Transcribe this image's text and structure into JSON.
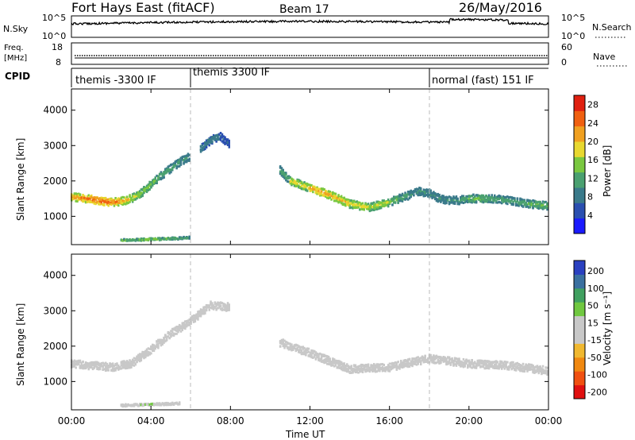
{
  "header": {
    "station": "Fort Hays East (fitACF)",
    "beam": "Beam 17",
    "date": "26/May/2016"
  },
  "noise_panel": {
    "left_label": "N.Sky",
    "right_label": "N.Search",
    "left_ticks": [
      "10^5",
      "10^0"
    ],
    "right_ticks": [
      "10^5",
      "10^0"
    ]
  },
  "freq_panel": {
    "left_label_line1": "Freq.",
    "left_label_line2": "[MHz]",
    "right_label": "Nave",
    "left_ticks": [
      "18",
      "8"
    ],
    "right_ticks": [
      "60",
      "0"
    ]
  },
  "cpid": {
    "label": "CPID",
    "segments": [
      {
        "name": "themis -3300 IF",
        "start_hour": 0
      },
      {
        "name": "themis 3300 IF",
        "start_hour": 6
      },
      {
        "name": "normal (fast) 151 IF",
        "start_hour": 18
      }
    ]
  },
  "colors": {
    "power_scale": [
      "#1a1aff",
      "#2a4fb0",
      "#3a7a8a",
      "#4aa070",
      "#7ac840",
      "#e8d830",
      "#f0a020",
      "#f06010",
      "#e02010"
    ],
    "velocity_scale": [
      "#e01010",
      "#f05010",
      "#f08810",
      "#f0b830",
      "#c8c8c8",
      "#c8c8c8",
      "#70c840",
      "#40a060",
      "#3a70a0",
      "#2a40c0"
    ]
  },
  "chart_data": [
    {
      "type": "heatmap",
      "title": "",
      "quantity": "Power",
      "xlabel": "",
      "ylabel": "Slant Range [km]",
      "xlim": [
        0,
        24
      ],
      "ylim": [
        200,
        4600
      ],
      "yticks": [
        1000,
        2000,
        3000,
        4000
      ],
      "colorbar": {
        "label": "Power [dB]",
        "ticks": [
          "4",
          "8",
          "12",
          "16",
          "20",
          "24",
          "28"
        ],
        "range": [
          0,
          30
        ]
      },
      "features": [
        {
          "feature": "ionospheric scatter",
          "hours": [
            0.0,
            0.5,
            1.0,
            1.5,
            2.0,
            2.5,
            3.0,
            3.5,
            4.0,
            4.5,
            5.0,
            5.5,
            6.0
          ],
          "range_km": [
            1550,
            1520,
            1480,
            1430,
            1400,
            1420,
            1500,
            1650,
            1900,
            2150,
            2350,
            2550,
            2700
          ],
          "peak_power_db": [
            24,
            26,
            28,
            28,
            26,
            22,
            18,
            16,
            14,
            12,
            12,
            10,
            10
          ]
        },
        {
          "feature": "ionospheric scatter",
          "hours": [
            6.5,
            7.0,
            7.5,
            8.0
          ],
          "range_km": [
            2900,
            3150,
            3250,
            3000
          ],
          "peak_power_db": [
            8,
            8,
            6,
            6
          ]
        },
        {
          "feature": "ionospheric scatter",
          "hours": [
            10.5,
            11.0,
            12.0,
            13.0,
            14.0,
            15.0,
            16.0,
            16.5,
            17.0,
            17.5,
            18.0,
            18.5,
            19.0,
            19.5,
            20.0,
            21.0,
            22.0,
            23.0,
            24.0
          ],
          "range_km": [
            2300,
            2000,
            1800,
            1600,
            1350,
            1250,
            1400,
            1500,
            1600,
            1700,
            1650,
            1500,
            1450,
            1450,
            1500,
            1500,
            1450,
            1350,
            1300
          ],
          "peak_power_db": [
            12,
            20,
            24,
            22,
            20,
            18,
            14,
            12,
            10,
            10,
            10,
            10,
            10,
            12,
            14,
            12,
            12,
            14,
            12
          ]
        },
        {
          "feature": "near-range scatter",
          "hours": [
            2.5,
            3.5,
            4.5,
            5.5,
            6.0
          ],
          "range_km": [
            320,
            340,
            360,
            380,
            400
          ],
          "peak_power_db": [
            14,
            16,
            14,
            12,
            10
          ]
        }
      ]
    },
    {
      "type": "heatmap",
      "title": "",
      "quantity": "Velocity",
      "xlabel": "Time UT",
      "ylabel": "Slant Range [km]",
      "xlim": [
        0,
        24
      ],
      "ylim": [
        200,
        4600
      ],
      "xticks": [
        "00:00",
        "04:00",
        "08:00",
        "12:00",
        "16:00",
        "20:00",
        "00:00"
      ],
      "yticks": [
        1000,
        2000,
        3000,
        4000
      ],
      "colorbar": {
        "label": "Velocity [m s^-1]",
        "ticks": [
          "200",
          "100",
          "50",
          "15",
          "-15",
          "-50",
          "-100",
          "-200"
        ],
        "range": [
          -250,
          250
        ]
      },
      "features": [
        {
          "feature": "ground scatter (low velocity)",
          "hours": [
            0.0,
            1.0,
            2.0,
            3.0,
            4.0,
            5.0,
            6.0,
            7.0,
            8.0
          ],
          "range_km": [
            1500,
            1450,
            1400,
            1500,
            1900,
            2350,
            2700,
            3150,
            3100
          ],
          "velocity_ms": [
            0,
            0,
            0,
            0,
            0,
            0,
            0,
            0,
            0
          ]
        },
        {
          "feature": "ground scatter (low velocity)",
          "hours": [
            10.5,
            12.0,
            14.0,
            16.0,
            18.0,
            20.0,
            22.0,
            24.0
          ],
          "range_km": [
            2100,
            1800,
            1350,
            1400,
            1650,
            1500,
            1450,
            1300
          ],
          "velocity_ms": [
            0,
            0,
            0,
            0,
            0,
            0,
            0,
            0
          ]
        },
        {
          "feature": "near-range positive velocity",
          "hours": [
            2.5,
            3.5,
            4.5,
            5.5
          ],
          "range_km": [
            320,
            340,
            360,
            380
          ],
          "velocity_ms": [
            40,
            50,
            45,
            40
          ]
        }
      ]
    }
  ]
}
